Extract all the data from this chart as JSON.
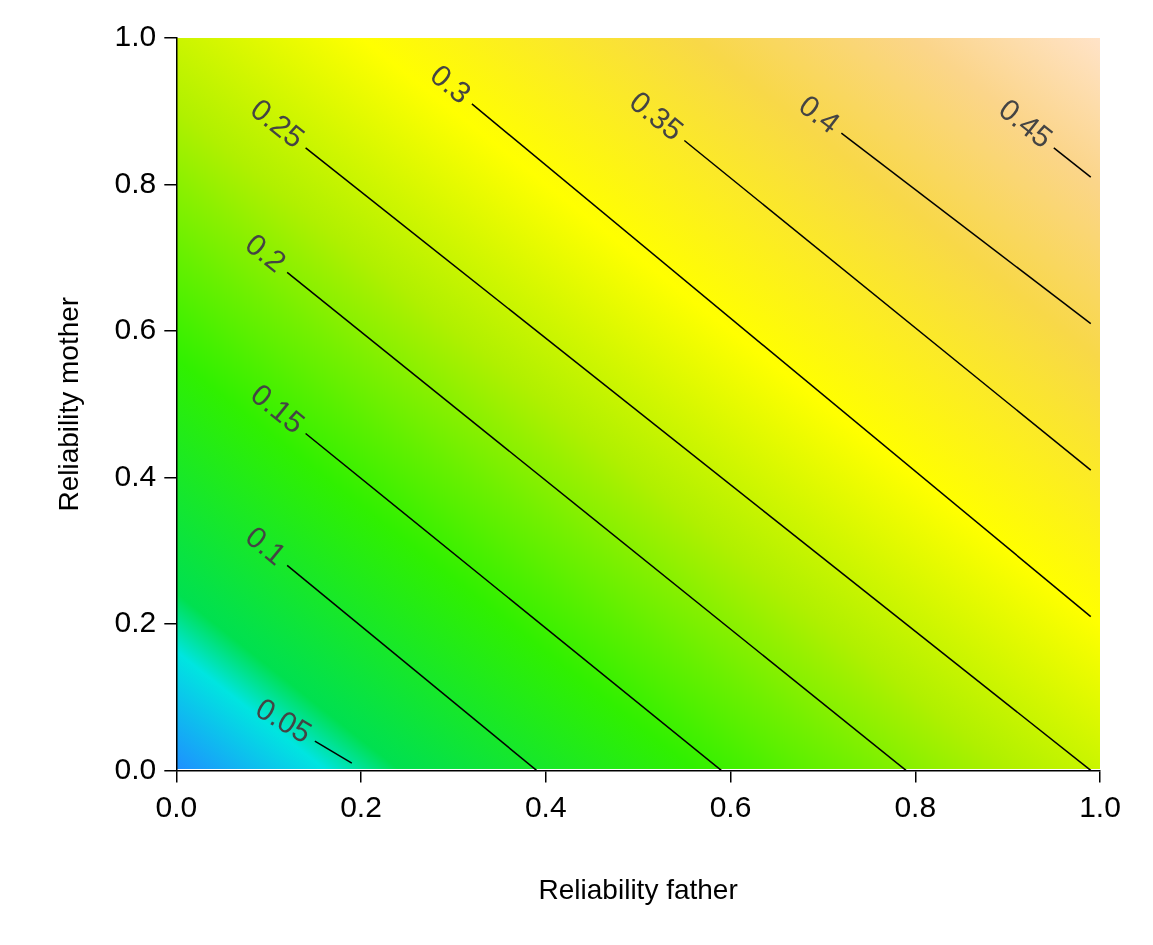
{
  "chart_data": {
    "type": "line",
    "xlabel": "Reliability father",
    "ylabel": "Reliability mother",
    "xlim": [
      0,
      1
    ],
    "ylim": [
      0,
      1
    ],
    "xticks": [
      {
        "value": 0,
        "label": "0.0"
      },
      {
        "value": 0.2,
        "label": "0.2"
      },
      {
        "value": 0.4,
        "label": "0.4"
      },
      {
        "value": 0.6,
        "label": "0.6"
      },
      {
        "value": 0.8,
        "label": "0.8"
      },
      {
        "value": 1,
        "label": "1.0"
      }
    ],
    "yticks": [
      {
        "value": 0,
        "label": "0.0"
      },
      {
        "value": 0.2,
        "label": "0.2"
      },
      {
        "value": 0.4,
        "label": "0.4"
      },
      {
        "value": 0.6,
        "label": "0.6"
      },
      {
        "value": 0.8,
        "label": "0.8"
      },
      {
        "value": 1,
        "label": "1.0"
      }
    ],
    "grid": false,
    "legend": false,
    "marker": "none",
    "line_style": "solid",
    "series": [
      {
        "name": "0.05",
        "color": "#000000",
        "x": [
          0.15,
          0.19
        ],
        "values": [
          0.04,
          0.01
        ]
      },
      {
        "name": "0.1",
        "color": "#000000",
        "x": [
          0.12,
          0.39
        ],
        "values": [
          0.28,
          0.0
        ]
      },
      {
        "name": "0.15",
        "color": "#000000",
        "x": [
          0.14,
          0.59
        ],
        "values": [
          0.46,
          0.0
        ]
      },
      {
        "name": "0.2",
        "color": "#000000",
        "x": [
          0.12,
          0.79
        ],
        "values": [
          0.68,
          0.0
        ]
      },
      {
        "name": "0.25",
        "color": "#000000",
        "x": [
          0.14,
          0.99
        ],
        "values": [
          0.85,
          0.0
        ]
      },
      {
        "name": "0.3",
        "color": "#000000",
        "x": [
          0.32,
          0.99
        ],
        "values": [
          0.91,
          0.21
        ]
      },
      {
        "name": "0.35",
        "color": "#000000",
        "x": [
          0.55,
          0.99
        ],
        "values": [
          0.86,
          0.41
        ]
      },
      {
        "name": "0.4",
        "color": "#000000",
        "x": [
          0.72,
          0.99
        ],
        "values": [
          0.87,
          0.61
        ]
      },
      {
        "name": "0.45",
        "color": "#000000",
        "x": [
          0.95,
          0.99
        ],
        "values": [
          0.85,
          0.81
        ]
      }
    ]
  }
}
